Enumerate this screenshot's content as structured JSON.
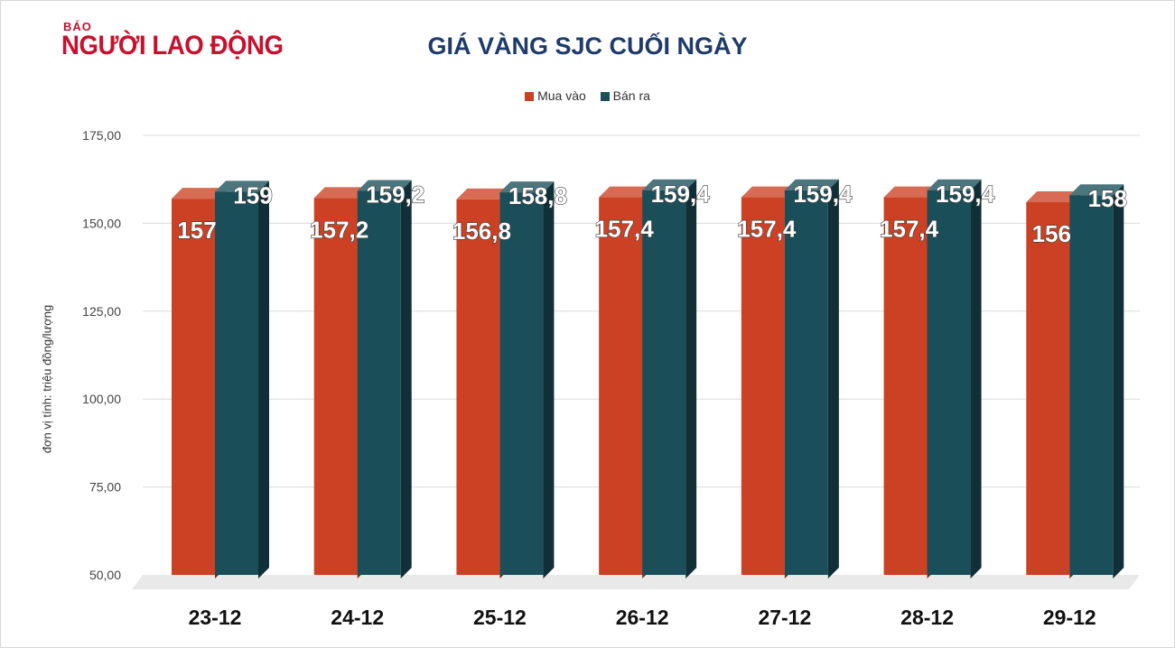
{
  "logo": {
    "small": "BÁO",
    "name": "NGƯỜI LAO ĐỘNG"
  },
  "chart_data": {
    "type": "bar",
    "title": "GIÁ VÀNG SJC CUỐI NGÀY",
    "ylabel": "đơn vị tính: triệu đồng/lượng",
    "xlabel": "",
    "categories": [
      "23-12",
      "24-12",
      "25-12",
      "26-12",
      "27-12",
      "28-12",
      "29-12"
    ],
    "series": [
      {
        "name": "Mua vào",
        "color": "#cc4123",
        "values": [
          157,
          157.2,
          156.8,
          157.4,
          157.4,
          157.4,
          156
        ],
        "labels": [
          "157",
          "157,2",
          "156,8",
          "157,4",
          "157,4",
          "157,4",
          "156"
        ]
      },
      {
        "name": "Bán ra",
        "color": "#1a4f5a",
        "values": [
          159,
          159.2,
          158.8,
          159.4,
          159.4,
          159.4,
          158
        ],
        "labels": [
          "159",
          "159,2",
          "158,8",
          "159,4",
          "159,4",
          "159,4",
          "158"
        ]
      }
    ],
    "yticks": [
      {
        "value": 50,
        "label": "50,00"
      },
      {
        "value": 75,
        "label": "75,00"
      },
      {
        "value": 100,
        "label": "100,00"
      },
      {
        "value": 125,
        "label": "125,00"
      },
      {
        "value": 150,
        "label": "150,00"
      },
      {
        "value": 175,
        "label": "175,00"
      }
    ],
    "ylim": [
      50,
      175
    ],
    "grid": true,
    "legend_position": "top"
  }
}
